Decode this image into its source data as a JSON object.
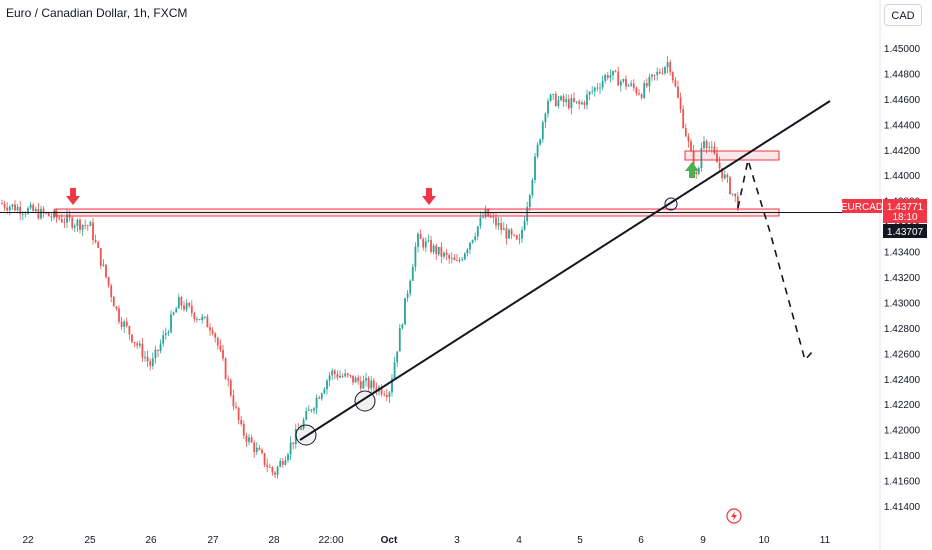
{
  "header": {
    "title": "Euro / Canadian Dollar, 1h, FXCM"
  },
  "toolbar": {
    "currency_label": "CAD"
  },
  "price_labels": {
    "symbol": "EURCAD",
    "last_price": "1.43771",
    "countdown": "18:10",
    "line_price": "1.43707"
  },
  "colors": {
    "bull": "#26a69a",
    "bear": "#ef5350",
    "zone": "#f23645",
    "arrow_down": "#f23645",
    "arrow_up": "#4caf50",
    "axis_text": "#131722",
    "label_bg_dark": "#131722",
    "label_bg_red": "#f23645"
  },
  "chart_data": {
    "type": "candlestick",
    "title": "Euro / Canadian Dollar, 1h, FXCM",
    "x_tick_labels": [
      "22",
      "25",
      "26",
      "27",
      "28",
      "22:00",
      "Oct",
      "3",
      "4",
      "5",
      "6",
      "9",
      "10",
      "11"
    ],
    "y_tick_labels": [
      "1.45000",
      "1.44800",
      "1.44600",
      "1.44400",
      "1.44200",
      "1.44000",
      "1.43800",
      "1.43600",
      "1.43400",
      "1.43200",
      "1.43000",
      "1.42800",
      "1.42600",
      "1.42400",
      "1.42200",
      "1.42000",
      "1.41800",
      "1.41600",
      "1.41400"
    ],
    "ylim": [
      1.413,
      1.4518
    ],
    "approx_price_path": [
      {
        "x": "22",
        "price": 1.4378
      },
      {
        "x": "25",
        "price": 1.436
      },
      {
        "x": "25",
        "price": 1.429
      },
      {
        "x": "26",
        "price": 1.425
      },
      {
        "x": "26",
        "price": 1.43
      },
      {
        "x": "27",
        "price": 1.428
      },
      {
        "x": "27",
        "price": 1.42
      },
      {
        "x": "28",
        "price": 1.4165
      },
      {
        "x": "22:00",
        "price": 1.4245
      },
      {
        "x": "Oct",
        "price": 1.423
      },
      {
        "x": "Oct",
        "price": 1.435
      },
      {
        "x": "3",
        "price": 1.433
      },
      {
        "x": "3",
        "price": 1.437
      },
      {
        "x": "4",
        "price": 1.4345
      },
      {
        "x": "4",
        "price": 1.446
      },
      {
        "x": "5",
        "price": 1.4455
      },
      {
        "x": "5",
        "price": 1.448
      },
      {
        "x": "6",
        "price": 1.4465
      },
      {
        "x": "6",
        "price": 1.449
      },
      {
        "x": "6",
        "price": 1.4395
      },
      {
        "x": "9",
        "price": 1.4432
      },
      {
        "x": "9",
        "price": 1.4377
      }
    ],
    "horizontal_zone": {
      "from": 1.437,
      "to": 1.4375
    },
    "projection_zone": {
      "from": 1.4416,
      "to": 1.4423
    },
    "grid": false,
    "legend": "none"
  }
}
